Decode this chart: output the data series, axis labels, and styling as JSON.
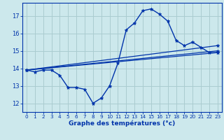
{
  "background_color": "#cce8ec",
  "grid_color": "#aaccd0",
  "line_color": "#0033aa",
  "xlabel": "Graphe des températures (°c)",
  "xlim": [
    -0.5,
    23.5
  ],
  "ylim": [
    11.5,
    17.75
  ],
  "yticks": [
    12,
    13,
    14,
    15,
    16,
    17
  ],
  "xticks": [
    0,
    1,
    2,
    3,
    4,
    5,
    6,
    7,
    8,
    9,
    10,
    11,
    12,
    13,
    14,
    15,
    16,
    17,
    18,
    19,
    20,
    21,
    22,
    23
  ],
  "series": [
    {
      "x": [
        0,
        1,
        2,
        3,
        4,
        5,
        6,
        7,
        8,
        9,
        10,
        11,
        12,
        13,
        14,
        15,
        16,
        17,
        18,
        19,
        20,
        21,
        22,
        23
      ],
      "y": [
        13.9,
        13.8,
        13.9,
        13.9,
        13.6,
        12.9,
        12.9,
        12.8,
        12.0,
        12.3,
        13.0,
        14.3,
        16.2,
        16.6,
        17.3,
        17.4,
        17.1,
        16.7,
        15.6,
        15.3,
        15.5,
        15.2,
        14.9,
        14.9
      ]
    },
    {
      "x": [
        0,
        23
      ],
      "y": [
        13.9,
        15.0
      ]
    },
    {
      "x": [
        0,
        23
      ],
      "y": [
        13.9,
        15.3
      ]
    },
    {
      "x": [
        0,
        23
      ],
      "y": [
        13.9,
        14.9
      ]
    }
  ]
}
